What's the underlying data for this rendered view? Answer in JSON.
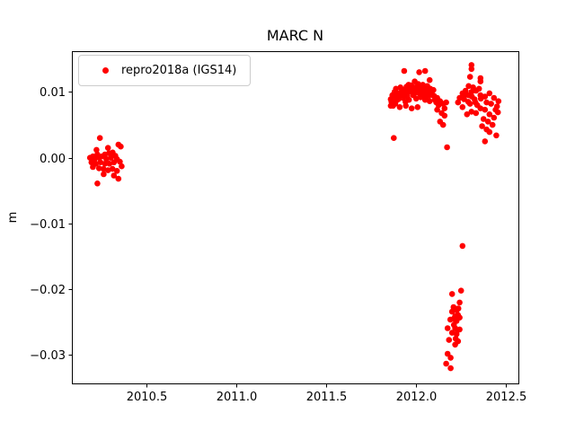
{
  "chart_data": {
    "type": "scatter",
    "title": "MARC N",
    "xlabel": "",
    "ylabel": "m",
    "grid": false,
    "legend_position": "upper left",
    "xlim": [
      2010.083,
      2012.569
    ],
    "ylim": [
      -0.0343,
      0.0162
    ],
    "x_ticks": {
      "values": [
        2010.5,
        2011.0,
        2011.5,
        2012.0,
        2012.5
      ],
      "labels": [
        "2010.5",
        "2011.0",
        "2011.5",
        "2012.0",
        "2012.5"
      ]
    },
    "y_ticks": {
      "values": [
        0.01,
        0.0,
        -0.01,
        -0.02,
        -0.03
      ],
      "labels": [
        "0.01",
        "0.00",
        "−0.01",
        "−0.02",
        "−0.03"
      ]
    },
    "series": [
      {
        "name": "repro2018a (IGS14)",
        "color": "#ff0000",
        "marker": "circle",
        "points": [
          [
            2010.239,
            0.003
          ],
          [
            2010.284,
            0.0015
          ],
          [
            2010.342,
            0.002
          ],
          [
            2010.355,
            0.0017
          ],
          [
            2010.267,
            0.0005
          ],
          [
            2010.225,
            0.0005
          ],
          [
            2010.2,
            0.0002
          ],
          [
            2010.184,
            0.0
          ],
          [
            2010.209,
            -0.0002
          ],
          [
            2010.234,
            0.0
          ],
          [
            2010.25,
            0.0002
          ],
          [
            2010.275,
            -0.0002
          ],
          [
            2010.3,
            0.0
          ],
          [
            2010.325,
            0.0003
          ],
          [
            2010.334,
            -0.0002
          ],
          [
            2010.35,
            -0.0006
          ],
          [
            2010.317,
            -0.0007
          ],
          [
            2010.292,
            -0.0009
          ],
          [
            2010.267,
            -0.0009
          ],
          [
            2010.242,
            -0.0007
          ],
          [
            2010.217,
            -0.0009
          ],
          [
            2010.192,
            -0.0007
          ],
          [
            2010.2,
            -0.0014
          ],
          [
            2010.234,
            -0.0016
          ],
          [
            2010.259,
            -0.0017
          ],
          [
            2010.284,
            -0.0019
          ],
          [
            2010.309,
            -0.0017
          ],
          [
            2010.334,
            -0.002
          ],
          [
            2010.317,
            -0.0027
          ],
          [
            2010.342,
            -0.0032
          ],
          [
            2010.225,
            -0.0039
          ],
          [
            2010.31,
            0.0008
          ],
          [
            2010.26,
            -0.0025
          ],
          [
            2010.29,
            0.0007
          ],
          [
            2010.22,
            0.0012
          ],
          [
            2010.36,
            -0.0013
          ],
          [
            2011.933,
            0.0132
          ],
          [
            2012.017,
            0.013
          ],
          [
            2012.05,
            0.0132
          ],
          [
            2012.075,
            0.0118
          ],
          [
            2011.992,
            0.0116
          ],
          [
            2011.958,
            0.0111
          ],
          [
            2012.008,
            0.0109
          ],
          [
            2012.033,
            0.0107
          ],
          [
            2012.058,
            0.0105
          ],
          [
            2011.975,
            0.0105
          ],
          [
            2011.942,
            0.0102
          ],
          [
            2011.917,
            0.01
          ],
          [
            2011.892,
            0.0098
          ],
          [
            2011.875,
            0.0093
          ],
          [
            2011.858,
            0.0089
          ],
          [
            2011.9,
            0.0089
          ],
          [
            2011.925,
            0.0091
          ],
          [
            2011.95,
            0.0093
          ],
          [
            2011.983,
            0.0095
          ],
          [
            2012.017,
            0.0098
          ],
          [
            2012.042,
            0.0095
          ],
          [
            2012.067,
            0.0093
          ],
          [
            2012.092,
            0.0095
          ],
          [
            2012.117,
            0.0091
          ],
          [
            2012.133,
            0.0086
          ],
          [
            2012.15,
            0.0082
          ],
          [
            2012.167,
            0.0084
          ],
          [
            2011.883,
            0.0082
          ],
          [
            2011.858,
            0.0079
          ],
          [
            2011.908,
            0.0077
          ],
          [
            2011.942,
            0.0079
          ],
          [
            2011.975,
            0.0075
          ],
          [
            2012.008,
            0.0077
          ],
          [
            2012.117,
            0.0073
          ],
          [
            2012.142,
            0.0068
          ],
          [
            2012.158,
            0.0064
          ],
          [
            2012.133,
            0.0055
          ],
          [
            2012.15,
            0.005
          ],
          [
            2011.875,
            0.003
          ],
          [
            2012.172,
            0.0016
          ],
          [
            2011.867,
            0.0095
          ],
          [
            2011.879,
            0.01
          ],
          [
            2011.887,
            0.0105
          ],
          [
            2011.896,
            0.0094
          ],
          [
            2011.904,
            0.0098
          ],
          [
            2011.912,
            0.0107
          ],
          [
            2011.921,
            0.0095
          ],
          [
            2011.929,
            0.0103
          ],
          [
            2011.937,
            0.0097
          ],
          [
            2011.946,
            0.0108
          ],
          [
            2011.954,
            0.0099
          ],
          [
            2011.962,
            0.0104
          ],
          [
            2011.971,
            0.011
          ],
          [
            2011.979,
            0.0101
          ],
          [
            2011.987,
            0.0107
          ],
          [
            2011.996,
            0.0099
          ],
          [
            2012.004,
            0.0103
          ],
          [
            2012.012,
            0.0112
          ],
          [
            2012.021,
            0.0105
          ],
          [
            2012.029,
            0.0099
          ],
          [
            2012.037,
            0.0111
          ],
          [
            2012.046,
            0.0102
          ],
          [
            2012.054,
            0.0098
          ],
          [
            2012.062,
            0.0109
          ],
          [
            2012.071,
            0.0101
          ],
          [
            2012.079,
            0.0105
          ],
          [
            2012.087,
            0.0098
          ],
          [
            2012.096,
            0.0103
          ],
          [
            2012.104,
            0.0088
          ],
          [
            2012.112,
            0.0084
          ],
          [
            2012.125,
            0.008
          ],
          [
            2012.158,
            0.0075
          ],
          [
            2011.862,
            0.0085
          ],
          [
            2011.871,
            0.0079
          ],
          [
            2011.889,
            0.0087
          ],
          [
            2011.94,
            0.0085
          ],
          [
            2011.96,
            0.0088
          ],
          [
            2012.0,
            0.009
          ],
          [
            2012.025,
            0.0092
          ],
          [
            2012.05,
            0.0088
          ],
          [
            2012.075,
            0.0086
          ],
          [
            2012.1,
            0.0094
          ],
          [
            2012.308,
            0.0141
          ],
          [
            2012.308,
            0.0135
          ],
          [
            2012.3,
            0.0123
          ],
          [
            2012.358,
            0.0121
          ],
          [
            2012.358,
            0.0116
          ],
          [
            2012.292,
            0.0109
          ],
          [
            2012.317,
            0.0107
          ],
          [
            2012.275,
            0.0102
          ],
          [
            2012.333,
            0.0102
          ],
          [
            2012.308,
            0.01
          ],
          [
            2012.258,
            0.0098
          ],
          [
            2012.408,
            0.0098
          ],
          [
            2012.292,
            0.0095
          ],
          [
            2012.358,
            0.0095
          ],
          [
            2012.383,
            0.0093
          ],
          [
            2012.433,
            0.0091
          ],
          [
            2012.242,
            0.0091
          ],
          [
            2012.267,
            0.0089
          ],
          [
            2012.325,
            0.0089
          ],
          [
            2012.233,
            0.0084
          ],
          [
            2012.3,
            0.0082
          ],
          [
            2012.392,
            0.0084
          ],
          [
            2012.417,
            0.0082
          ],
          [
            2012.258,
            0.0077
          ],
          [
            2012.358,
            0.0075
          ],
          [
            2012.383,
            0.0073
          ],
          [
            2012.442,
            0.0073
          ],
          [
            2012.308,
            0.007
          ],
          [
            2012.333,
            0.0068
          ],
          [
            2012.408,
            0.0066
          ],
          [
            2012.283,
            0.0066
          ],
          [
            2012.433,
            0.0061
          ],
          [
            2012.375,
            0.0059
          ],
          [
            2012.4,
            0.0055
          ],
          [
            2012.425,
            0.005
          ],
          [
            2012.367,
            0.0048
          ],
          [
            2012.392,
            0.0043
          ],
          [
            2012.408,
            0.0039
          ],
          [
            2012.383,
            0.0025
          ],
          [
            2012.458,
            0.0086
          ],
          [
            2012.45,
            0.0078
          ],
          [
            2012.455,
            0.0069
          ],
          [
            2012.29,
            0.0085
          ],
          [
            2012.34,
            0.008
          ],
          [
            2012.36,
            0.009
          ],
          [
            2012.31,
            0.0093
          ],
          [
            2012.27,
            0.0095
          ],
          [
            2012.35,
            0.0105
          ],
          [
            2012.33,
            0.0084
          ],
          [
            2012.446,
            0.0034
          ],
          [
            2012.258,
            -0.0134
          ],
          [
            2012.2,
            -0.0207
          ],
          [
            2012.25,
            -0.0202
          ],
          [
            2012.242,
            -0.022
          ],
          [
            2012.208,
            -0.0227
          ],
          [
            2012.225,
            -0.0232
          ],
          [
            2012.2,
            -0.0234
          ],
          [
            2012.233,
            -0.0239
          ],
          [
            2012.217,
            -0.0241
          ],
          [
            2012.242,
            -0.0243
          ],
          [
            2012.208,
            -0.0245
          ],
          [
            2012.225,
            -0.0248
          ],
          [
            2012.175,
            -0.0259
          ],
          [
            2012.217,
            -0.0259
          ],
          [
            2012.242,
            -0.0261
          ],
          [
            2012.2,
            -0.0266
          ],
          [
            2012.225,
            -0.0268
          ],
          [
            2012.183,
            -0.0277
          ],
          [
            2012.233,
            -0.0279
          ],
          [
            2012.217,
            -0.0284
          ],
          [
            2012.175,
            -0.0298
          ],
          [
            2012.192,
            -0.0304
          ],
          [
            2012.167,
            -0.0313
          ],
          [
            2012.192,
            -0.032
          ],
          [
            2012.21,
            -0.0254
          ],
          [
            2012.23,
            -0.0262
          ],
          [
            2012.19,
            -0.0246
          ],
          [
            2012.22,
            -0.0275
          ],
          [
            2012.235,
            -0.0229
          ]
        ]
      }
    ]
  },
  "legend": {
    "label": "repro2018a (IGS14)",
    "marker_color": "#ff0000"
  },
  "axes": {
    "spine_color": "#000000"
  }
}
